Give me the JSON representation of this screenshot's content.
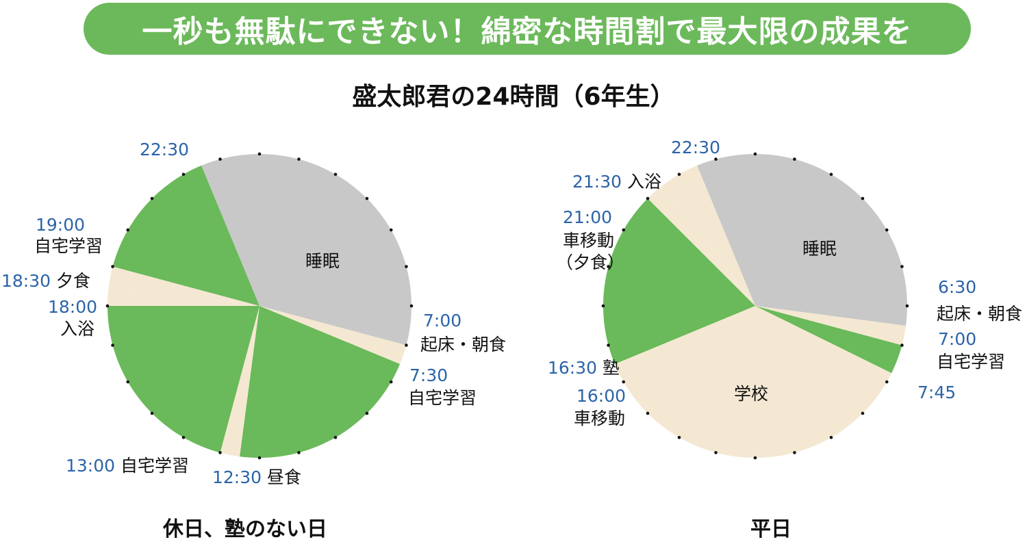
{
  "title": "一秒も無駄にできない！綿密な時間割で最大限の成果を",
  "subtitle": "盛太郎君の24時間（6年生）",
  "colors": {
    "banner": "#6cb95b",
    "study": "#6ab95a",
    "sleep": "#c8c8c8",
    "other": "#f4e8d2",
    "time_label": "#2b64a8"
  },
  "chart_data": [
    {
      "type": "pie",
      "caption": "休日、塾のない日",
      "clock": "24h, 0:00 at top, clockwise",
      "segments": [
        {
          "start": "22:30",
          "end": "7:00",
          "label": "睡眠",
          "category": "sleep"
        },
        {
          "start": "7:00",
          "end": "7:30",
          "label": "起床・朝食",
          "category": "other"
        },
        {
          "start": "7:30",
          "end": "12:30",
          "label": "自宅学習",
          "category": "study"
        },
        {
          "start": "12:30",
          "end": "13:00",
          "label": "昼食",
          "category": "other"
        },
        {
          "start": "13:00",
          "end": "18:00",
          "label": "自宅学習",
          "category": "study"
        },
        {
          "start": "18:00",
          "end": "18:30",
          "label": "入浴",
          "category": "other"
        },
        {
          "start": "18:30",
          "end": "19:00",
          "label": "夕食",
          "category": "other"
        },
        {
          "start": "19:00",
          "end": "22:30",
          "label": "自宅学習",
          "category": "study"
        }
      ],
      "annotations": {
        "t2230": "22:30",
        "t1900": "19:00",
        "l1900": "自宅学習",
        "t1830": "18:30",
        "l1830": "夕食",
        "t1800": "18:00",
        "l1800": "入浴",
        "t1300": "13:00",
        "l1300": "自宅学習",
        "t1230": "12:30",
        "l1230": "昼食",
        "t0700": "7:00",
        "l0700": "起床・朝食",
        "t0730": "7:30",
        "l0730": "自宅学習",
        "inner_sleep": "睡眠"
      }
    },
    {
      "type": "pie",
      "caption": "平日",
      "clock": "24h, 0:00 at top, clockwise",
      "segments": [
        {
          "start": "22:30",
          "end": "6:30",
          "label": "睡眠",
          "category": "sleep"
        },
        {
          "start": "6:30",
          "end": "7:00",
          "label": "起床・朝食",
          "category": "other"
        },
        {
          "start": "7:00",
          "end": "7:45",
          "label": "自宅学習",
          "category": "study"
        },
        {
          "start": "7:45",
          "end": "16:00",
          "label": "学校",
          "category": "other"
        },
        {
          "start": "16:00",
          "end": "16:30",
          "label": "車移動",
          "category": "other"
        },
        {
          "start": "16:30",
          "end": "21:00",
          "label": "塾",
          "category": "study"
        },
        {
          "start": "21:00",
          "end": "21:30",
          "label": "車移動（夕食）",
          "category": "other"
        },
        {
          "start": "21:30",
          "end": "22:30",
          "label": "入浴",
          "category": "other"
        }
      ],
      "annotations": {
        "t2230": "22:30",
        "t2130": "21:30",
        "l2130": "入浴",
        "t2100": "21:00",
        "l2100a": "車移動",
        "l2100b": "（夕食）",
        "t1630": "16:30",
        "l1630": "塾",
        "t1600": "16:00",
        "l1600": "車移動",
        "t0630": "6:30",
        "l0630": "起床・朝食",
        "t0700": "7:00",
        "l0700": "自宅学習",
        "t0745": "7:45",
        "inner_sleep": "睡眠",
        "inner_school": "学校"
      }
    }
  ]
}
